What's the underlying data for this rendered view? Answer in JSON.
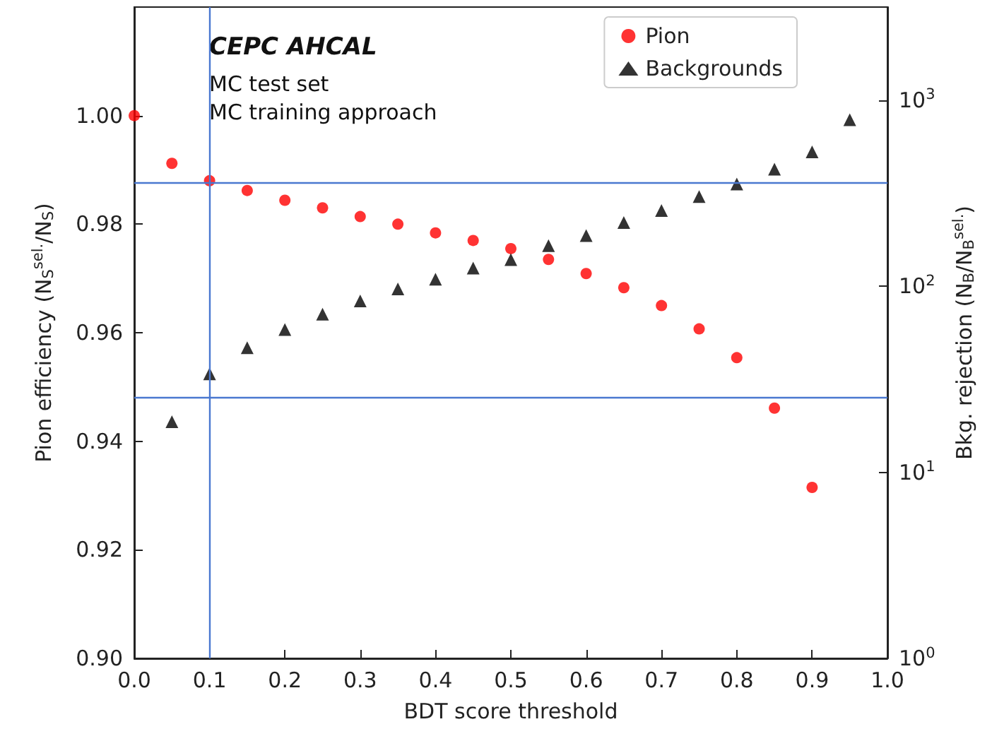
{
  "chart_data": {
    "type": "scatter",
    "xlabel": "BDT score threshold",
    "ylabel": "Pion efficiency (N$_{S}$$^{sel.}$/N$_{S}$)",
    "y2label": "Bkg. rejection (N$_{B}$/N$_{B}$$^{sel.}$)",
    "annotations": [
      "CEPC AHCAL",
      "MC test set",
      "MC training approach"
    ],
    "series": [
      {
        "name": "Pion",
        "color": "#ff0000",
        "marker": "circle",
        "x": [
          0,
          0.05,
          0.1,
          0.15,
          0.2,
          0.25,
          0.3,
          0.35,
          0.4,
          0.45,
          0.5,
          0.55,
          0.6,
          0.65,
          0.7,
          0.75,
          0.8,
          0.85,
          0.9
        ],
        "values": [
          1.0,
          0.9912,
          0.988,
          0.9862,
          0.9844,
          0.983,
          0.9814,
          0.98,
          0.9784,
          0.977,
          0.9755,
          0.9735,
          0.9709,
          0.9683,
          0.965,
          0.9607,
          0.9554,
          0.9461,
          0.9315
        ]
      },
      {
        "name": "Backgrounds",
        "color": "#000000",
        "marker": "triangle",
        "axis": "y2",
        "x": [
          0.05,
          0.1,
          0.15,
          0.2,
          0.25,
          0.3,
          0.35,
          0.4,
          0.45,
          0.5,
          0.55,
          0.6,
          0.65,
          0.7,
          0.75,
          0.8,
          0.85,
          0.9,
          0.95
        ],
        "values": [
          18.7,
          33.8,
          46.7,
          58.5,
          70.7,
          83.4,
          96.6,
          109,
          125,
          139,
          165,
          187,
          220,
          255,
          303,
          354,
          425,
          527,
          785
        ]
      }
    ],
    "xlim": [
      0,
      1
    ],
    "xticks": [
      {
        "value": 0,
        "label": "0.0"
      },
      0.1,
      0.2,
      0.3,
      0.4,
      0.5,
      0.6,
      0.7,
      0.8,
      0.9,
      {
        "value": 1,
        "label": "1.0"
      }
    ],
    "ylim": [
      0.9,
      1.02
    ],
    "yticks": [
      {
        "value": 0.9,
        "label": "0.90"
      },
      {
        "value": 0.92,
        "label": "0.92"
      },
      {
        "value": 0.94,
        "label": "0.94"
      },
      {
        "value": 0.96,
        "label": "0.96"
      },
      {
        "value": 0.98,
        "label": "0.98"
      },
      {
        "value": 1.0,
        "label": "1.00"
      }
    ],
    "y2lim": [
      1,
      3162
    ],
    "y2ticks": [
      {
        "value": 1,
        "label": "10$^{0}$"
      },
      {
        "value": 10,
        "label": "10$^{1}$"
      },
      {
        "value": 100,
        "label": "10$^{2}$"
      },
      {
        "value": 1000,
        "label": "10$^{3}$"
      }
    ],
    "log": "y2",
    "ref_lines": [
      {
        "axis": "y",
        "value": 0.9876,
        "color": "#4a78d0"
      },
      {
        "axis": "y",
        "value": 0.9482,
        "color": "#4a78d0"
      },
      {
        "axis": "x",
        "value": 0.1,
        "color": "#4a78d0"
      }
    ],
    "grid": false,
    "legend": "top right"
  }
}
